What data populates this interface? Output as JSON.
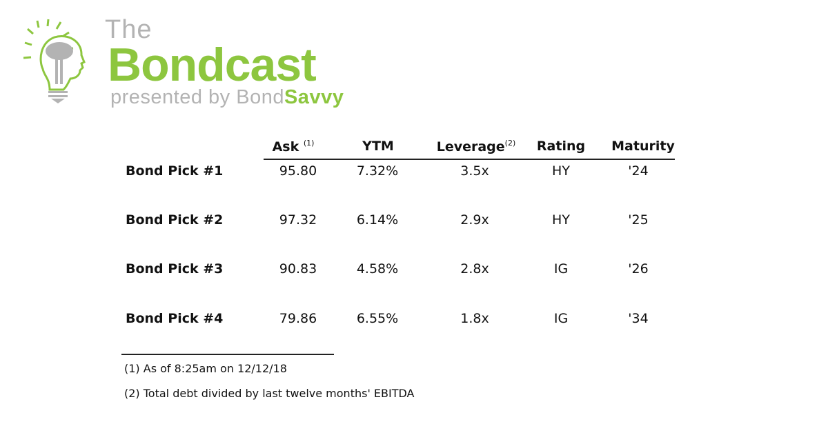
{
  "logo": {
    "the": "The",
    "name": "Bondcast",
    "presented_by": "presented by Bond",
    "brand_accent": "Savvy",
    "colors": {
      "green": "#8dc63f",
      "gray": "#b3b3b3"
    }
  },
  "table": {
    "headers": [
      {
        "label": "Ask",
        "sup": "(1)"
      },
      {
        "label": "YTM",
        "sup": ""
      },
      {
        "label": "Leverage",
        "sup": "(2)"
      },
      {
        "label": "Rating",
        "sup": ""
      },
      {
        "label": "Maturity",
        "sup": ""
      }
    ],
    "rows": [
      {
        "label": "Bond Pick #1",
        "ask": "95.80",
        "ytm": "7.32%",
        "leverage": "3.5x",
        "rating": "HY",
        "maturity": "'24"
      },
      {
        "label": "Bond Pick #2",
        "ask": "97.32",
        "ytm": "6.14%",
        "leverage": "2.9x",
        "rating": "HY",
        "maturity": "'25"
      },
      {
        "label": "Bond Pick #3",
        "ask": "90.83",
        "ytm": "4.58%",
        "leverage": "2.8x",
        "rating": "IG",
        "maturity": "'26"
      },
      {
        "label": "Bond Pick #4",
        "ask": "79.86",
        "ytm": "6.55%",
        "leverage": "1.8x",
        "rating": "IG",
        "maturity": "'34"
      }
    ]
  },
  "footnotes": [
    "(1) As of 8:25am on 12/12/18",
    "(2) Total debt divided by last twelve months' EBITDA"
  ]
}
